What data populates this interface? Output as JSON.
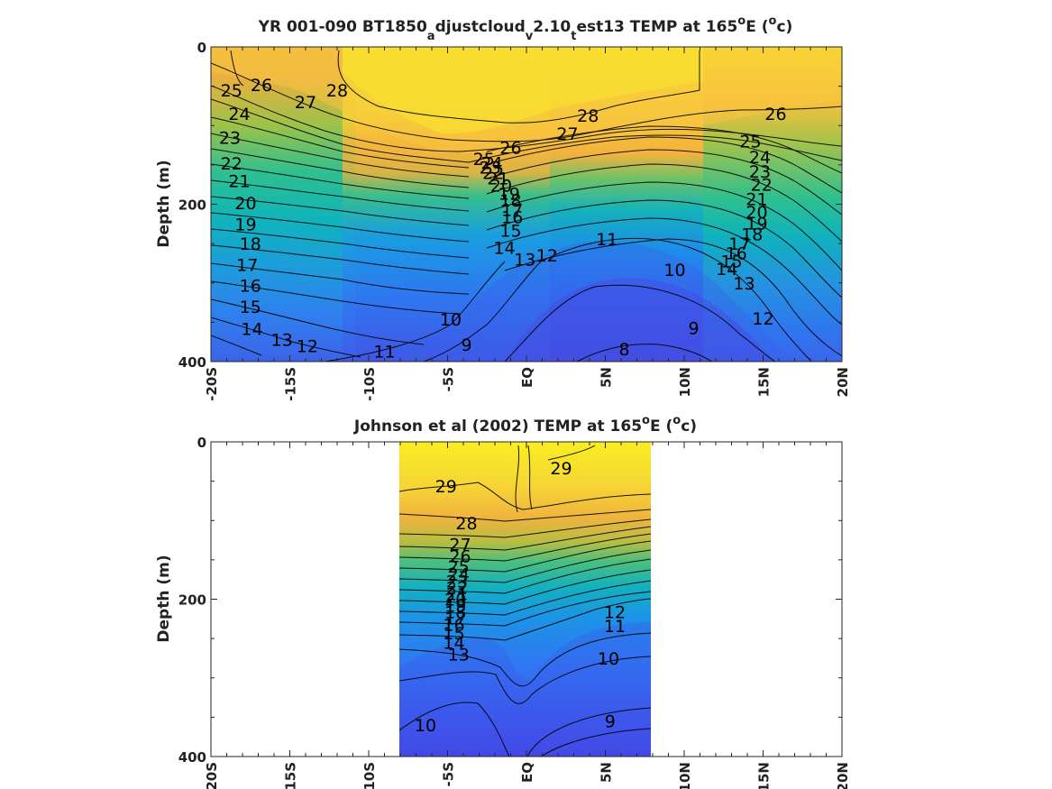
{
  "chart_data": [
    {
      "type": "heatmap",
      "subtype": "filled-contour",
      "title_parts": {
        "a": "YR 001-090 BT1850",
        "sub1": "a",
        "b": "djustcloud",
        "sub2": "v",
        "c": "2.10",
        "sub3": "t",
        "d": "est13 TEMP at 165",
        "sup1": "o",
        "e": "E (",
        "sup2": "o",
        "f": "c)"
      },
      "ylabel": "Depth (m)",
      "ylim": [
        0,
        400
      ],
      "y_reversed": true,
      "y_ticks": [
        0,
        200,
        400
      ],
      "y_tick_labels": [
        "0",
        "200",
        "400"
      ],
      "xlim": [
        -20,
        20
      ],
      "x_ticks": [
        -20,
        -15,
        -10,
        -5,
        0,
        5,
        10,
        15,
        20
      ],
      "x_tick_labels": [
        "-20S",
        "-15S",
        "-10S",
        "-5S",
        "EQ",
        "5N",
        "10N",
        "15N",
        "20N"
      ],
      "data_extent_x": [
        -20,
        20
      ],
      "contour_labels": [
        {
          "text": "25",
          "lat": -18.7,
          "depth": 55
        },
        {
          "text": "26",
          "lat": -16.8,
          "depth": 48
        },
        {
          "text": "27",
          "lat": -14.0,
          "depth": 70
        },
        {
          "text": "28",
          "lat": -12.0,
          "depth": 55
        },
        {
          "text": "24",
          "lat": -18.2,
          "depth": 85
        },
        {
          "text": "23",
          "lat": -18.8,
          "depth": 115
        },
        {
          "text": "22",
          "lat": -18.7,
          "depth": 148
        },
        {
          "text": "21",
          "lat": -18.2,
          "depth": 170
        },
        {
          "text": "20",
          "lat": -17.8,
          "depth": 198
        },
        {
          "text": "19",
          "lat": -17.8,
          "depth": 225
        },
        {
          "text": "18",
          "lat": -17.5,
          "depth": 250
        },
        {
          "text": "17",
          "lat": -17.7,
          "depth": 277
        },
        {
          "text": "16",
          "lat": -17.5,
          "depth": 303
        },
        {
          "text": "15",
          "lat": -17.5,
          "depth": 330
        },
        {
          "text": "14",
          "lat": -17.4,
          "depth": 358
        },
        {
          "text": "13",
          "lat": -15.5,
          "depth": 372
        },
        {
          "text": "12",
          "lat": -13.9,
          "depth": 380
        },
        {
          "text": "11",
          "lat": -9.0,
          "depth": 387
        },
        {
          "text": "10",
          "lat": -4.8,
          "depth": 346
        },
        {
          "text": "9",
          "lat": -3.8,
          "depth": 378
        },
        {
          "text": "8",
          "lat": 6.2,
          "depth": 384
        },
        {
          "text": "9",
          "lat": 10.6,
          "depth": 357
        },
        {
          "text": "10",
          "lat": 9.4,
          "depth": 283
        },
        {
          "text": "11",
          "lat": 5.1,
          "depth": 244
        },
        {
          "text": "12",
          "lat": 1.3,
          "depth": 265
        },
        {
          "text": "13",
          "lat": -0.1,
          "depth": 270
        },
        {
          "text": "14",
          "lat": -1.4,
          "depth": 255
        },
        {
          "text": "15",
          "lat": -1.0,
          "depth": 233
        },
        {
          "text": "16",
          "lat": -0.9,
          "depth": 216
        },
        {
          "text": "17",
          "lat": -0.9,
          "depth": 207
        },
        {
          "text": "18",
          "lat": -1.0,
          "depth": 195
        },
        {
          "text": "19",
          "lat": -1.1,
          "depth": 186
        },
        {
          "text": "20",
          "lat": -1.6,
          "depth": 176
        },
        {
          "text": "21",
          "lat": -1.8,
          "depth": 167
        },
        {
          "text": "22",
          "lat": -2.1,
          "depth": 160
        },
        {
          "text": "23",
          "lat": -2.3,
          "depth": 153
        },
        {
          "text": "24",
          "lat": -2.2,
          "depth": 147
        },
        {
          "text": "25",
          "lat": -2.7,
          "depth": 142
        },
        {
          "text": "26",
          "lat": -1.0,
          "depth": 128
        },
        {
          "text": "27",
          "lat": 2.6,
          "depth": 110
        },
        {
          "text": "28",
          "lat": 3.9,
          "depth": 87
        },
        {
          "text": "26",
          "lat": 15.8,
          "depth": 85
        },
        {
          "text": "25",
          "lat": 14.2,
          "depth": 120
        },
        {
          "text": "24",
          "lat": 14.8,
          "depth": 140
        },
        {
          "text": "23",
          "lat": 14.8,
          "depth": 158
        },
        {
          "text": "22",
          "lat": 14.9,
          "depth": 175
        },
        {
          "text": "21",
          "lat": 14.6,
          "depth": 193
        },
        {
          "text": "20",
          "lat": 14.6,
          "depth": 210
        },
        {
          "text": "19",
          "lat": 14.6,
          "depth": 224
        },
        {
          "text": "18",
          "lat": 14.3,
          "depth": 238
        },
        {
          "text": "17",
          "lat": 13.5,
          "depth": 250
        },
        {
          "text": "16",
          "lat": 13.3,
          "depth": 262
        },
        {
          "text": "15",
          "lat": 13.0,
          "depth": 272
        },
        {
          "text": "14",
          "lat": 12.7,
          "depth": 282
        },
        {
          "text": "13",
          "lat": 13.8,
          "depth": 300
        },
        {
          "text": "12",
          "lat": 15.0,
          "depth": 345
        }
      ]
    },
    {
      "type": "heatmap",
      "subtype": "filled-contour",
      "title_parts": {
        "a": "Johnson et al (2002) TEMP at 165",
        "sup1": "o",
        "b": "E (",
        "sup2": "o",
        "c": "c)"
      },
      "ylabel": "Depth (m)",
      "ylim": [
        0,
        400
      ],
      "y_reversed": true,
      "y_ticks": [
        0,
        200,
        400
      ],
      "y_tick_labels": [
        "0",
        "200",
        "400"
      ],
      "xlim": [
        -20,
        20
      ],
      "x_ticks": [
        -20,
        -15,
        -10,
        -5,
        0,
        5,
        10,
        15,
        20
      ],
      "x_tick_labels": [
        "-20S",
        "-15S",
        "-10S",
        "-5S",
        "EQ",
        "5N",
        "10N",
        "15N",
        "20N"
      ],
      "data_extent_x": [
        -8,
        8
      ],
      "contour_labels": [
        {
          "text": "29",
          "lat": -5.1,
          "depth": 56
        },
        {
          "text": "29",
          "lat": 2.2,
          "depth": 33
        },
        {
          "text": "28",
          "lat": -3.8,
          "depth": 103
        },
        {
          "text": "27",
          "lat": -4.2,
          "depth": 130
        },
        {
          "text": "26",
          "lat": -4.2,
          "depth": 145
        },
        {
          "text": "25",
          "lat": -4.3,
          "depth": 158
        },
        {
          "text": "24",
          "lat": -4.3,
          "depth": 168
        },
        {
          "text": "23",
          "lat": -4.4,
          "depth": 177
        },
        {
          "text": "22",
          "lat": -4.4,
          "depth": 185
        },
        {
          "text": "21",
          "lat": -4.4,
          "depth": 193
        },
        {
          "text": "20",
          "lat": -4.5,
          "depth": 200
        },
        {
          "text": "19",
          "lat": -4.5,
          "depth": 208
        },
        {
          "text": "18",
          "lat": -4.5,
          "depth": 216
        },
        {
          "text": "17",
          "lat": -4.5,
          "depth": 224
        },
        {
          "text": "16",
          "lat": -4.6,
          "depth": 232
        },
        {
          "text": "15",
          "lat": -4.6,
          "depth": 243
        },
        {
          "text": "14",
          "lat": -4.6,
          "depth": 255
        },
        {
          "text": "13",
          "lat": -4.3,
          "depth": 270
        },
        {
          "text": "12",
          "lat": 5.6,
          "depth": 216
        },
        {
          "text": "11",
          "lat": 5.6,
          "depth": 234
        },
        {
          "text": "10",
          "lat": 5.2,
          "depth": 275
        },
        {
          "text": "10",
          "lat": -6.4,
          "depth": 360
        },
        {
          "text": "9",
          "lat": 5.3,
          "depth": 355
        }
      ]
    }
  ]
}
